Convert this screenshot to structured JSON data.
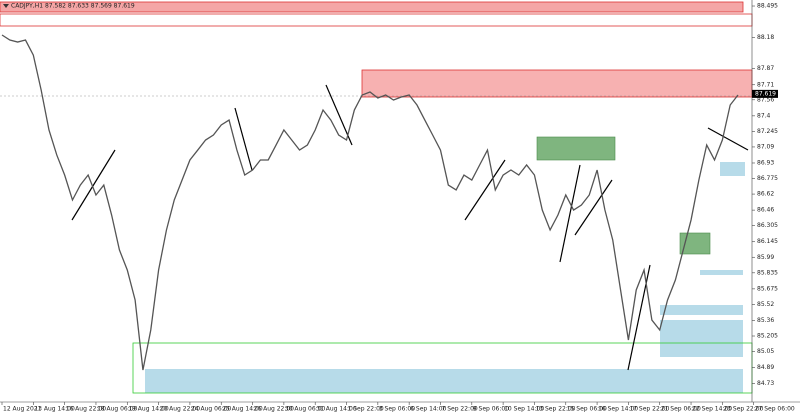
{
  "chart_data": {
    "type": "line",
    "header": "CADJPY,H1 87.582 87.633 87.569 87.619",
    "categories": [
      "12 Aug 2021",
      null,
      null,
      null,
      "13 Aug 14:00",
      null,
      null,
      null,
      "16 Aug 22:00",
      null,
      null,
      null,
      "18 Aug 06:00",
      null,
      null,
      null,
      "19 Aug 14:00",
      null,
      null,
      null,
      "20 Aug 22:00",
      null,
      null,
      null,
      "24 Aug 06:00",
      null,
      null,
      null,
      "25 Aug 14:00",
      null,
      null,
      null,
      "26 Aug 22:00",
      null,
      null,
      null,
      "30 Aug 06:00",
      null,
      null,
      null,
      "31 Aug 14:00",
      null,
      null,
      null,
      "1 Sep 22:00",
      null,
      null,
      null,
      "3 Sep 06:00",
      null,
      null,
      null,
      "6 Sep 14:00",
      null,
      null,
      null,
      "7 Sep 22:00",
      null,
      null,
      null,
      "9 Sep 06:00",
      null,
      null,
      null,
      "10 Sep 14:00",
      null,
      null,
      null,
      "13 Sep 22:00",
      null,
      null,
      null,
      "15 Sep 06:00",
      null,
      null,
      null,
      "16 Sep 14:00",
      null,
      null,
      null,
      "17 Sep 22:00",
      null,
      null,
      null,
      "21 Sep 06:00",
      null,
      null,
      null,
      "22 Sep 14:00",
      null,
      null,
      null,
      "23 Sep 22:00",
      null,
      null,
      null,
      "27 Sep 06:00"
    ],
    "series": [
      {
        "name": "CADJPY",
        "color": "#555555",
        "values": [
          88.206,
          88.156,
          88.136,
          88.156,
          88.006,
          87.658,
          87.259,
          87.009,
          86.81,
          86.561,
          86.71,
          86.81,
          86.611,
          86.71,
          86.411,
          86.062,
          85.863,
          85.564,
          84.866,
          85.265,
          85.863,
          86.261,
          86.561,
          86.76,
          86.96,
          87.059,
          87.159,
          87.209,
          87.309,
          87.358,
          87.059,
          86.81,
          86.86,
          86.96,
          86.96,
          87.109,
          87.259,
          87.159,
          87.059,
          87.109,
          87.259,
          87.458,
          87.358,
          87.209,
          87.159,
          87.458,
          87.608,
          87.638,
          87.578,
          87.608,
          87.558,
          87.588,
          87.608,
          87.508,
          87.358,
          87.209,
          87.059,
          86.71,
          86.661,
          86.81,
          86.76,
          86.91,
          87.059,
          86.661,
          86.81,
          86.86,
          86.81,
          86.91,
          86.81,
          86.461,
          86.262,
          86.411,
          86.611,
          86.461,
          86.511,
          86.611,
          86.86,
          86.461,
          86.162,
          85.664,
          85.165,
          85.664,
          85.863,
          85.364,
          85.265,
          85.564,
          85.763,
          86.062,
          86.361,
          86.76,
          87.109,
          86.96,
          87.159,
          87.508,
          87.608,
          null,
          null
        ]
      }
    ],
    "ylim": [
      84.547,
      88.555
    ],
    "yticks": [
      88.495,
      88.18,
      87.87,
      87.71,
      87.56,
      87.4,
      87.245,
      87.09,
      86.93,
      86.775,
      86.62,
      86.46,
      86.305,
      86.145,
      85.99,
      85.835,
      85.675,
      85.52,
      85.36,
      85.205,
      85.05,
      84.89,
      84.73
    ],
    "last_price": 87.619
  }
}
